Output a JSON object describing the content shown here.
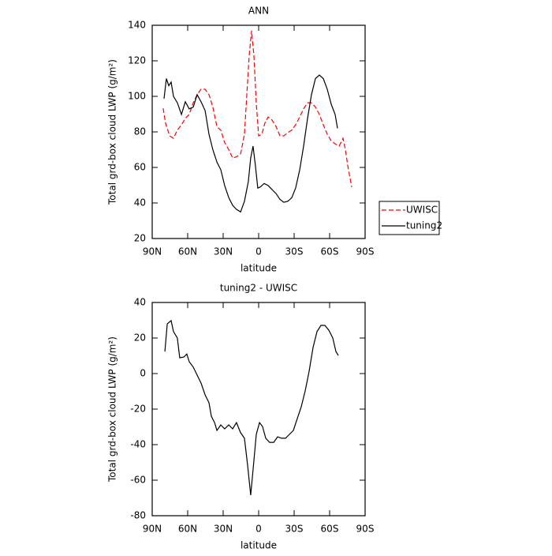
{
  "chart_data": [
    {
      "type": "line",
      "title": "ANN",
      "xlabel": "latitude",
      "ylabel": "Total grd-box cloud LWP (g/m²)",
      "xlim": [
        90,
        -90
      ],
      "xticks": [
        {
          "value": 90,
          "label": "90N"
        },
        {
          "value": 60,
          "label": "60N"
        },
        {
          "value": 30,
          "label": "30N"
        },
        0,
        {
          "value": -30,
          "label": "30S"
        },
        {
          "value": -60,
          "label": "60S"
        },
        {
          "value": -90,
          "label": "90S"
        }
      ],
      "ylim": [
        20,
        140
      ],
      "yticks": [
        20,
        40,
        60,
        80,
        100,
        120,
        140
      ],
      "legend": "outside-right",
      "series": [
        {
          "name": "UWISC",
          "color": "#ff0000",
          "style": "dashed",
          "x": [
            80.7,
            78.7,
            75.3,
            72,
            68.7,
            65.3,
            62,
            58.7,
            55.3,
            52,
            48.7,
            45.3,
            42,
            38.7,
            35.3,
            32,
            28.7,
            25.3,
            22,
            18.7,
            15.3,
            12,
            10,
            8,
            6,
            4,
            2,
            0,
            -2.7,
            -5.3,
            -8,
            -11.3,
            -14.7,
            -18,
            -21.3,
            -24.7,
            -28,
            -31.3,
            -34.7,
            -38,
            -41.3,
            -44.7,
            -48,
            -51.3,
            -54.7,
            -58,
            -61.3,
            -64.7,
            -68,
            -71.3,
            -73.3,
            -75.3,
            -78.7
          ],
          "values": [
            93.3,
            85,
            77.8,
            76.4,
            81,
            84,
            87.6,
            89.8,
            96.4,
            101,
            104,
            104,
            101,
            94,
            83,
            81,
            74,
            70,
            65.3,
            66,
            67.6,
            78.7,
            101,
            123,
            137,
            123,
            96,
            77.8,
            78.7,
            85,
            88.4,
            86.7,
            83,
            77.8,
            77.8,
            79.6,
            81,
            84,
            88.4,
            93,
            96.4,
            96.4,
            94,
            89.8,
            84,
            78.7,
            75,
            73.3,
            72,
            76.4,
            70,
            61,
            49
          ]
        },
        {
          "name": "tuning2",
          "color": "#000000",
          "style": "solid",
          "x": [
            80,
            78,
            76,
            74,
            72,
            68.7,
            65.3,
            62,
            58.7,
            55.3,
            52,
            48.7,
            45.3,
            42,
            38.7,
            35.3,
            32,
            28.7,
            25.3,
            22,
            18.7,
            15.3,
            12,
            8.7,
            6.7,
            4.7,
            2.7,
            0.7,
            -1.3,
            -4.7,
            -8,
            -11.3,
            -14.7,
            -18,
            -21.3,
            -24.7,
            -28,
            -31.3,
            -34.7,
            -38,
            -41.3,
            -44.7,
            -48,
            -51.3,
            -54.7,
            -58,
            -61.3,
            -64.7,
            -66.7
          ],
          "values": [
            98.7,
            110,
            106,
            108,
            100,
            96.4,
            89.8,
            97,
            93,
            94,
            101,
            97,
            92,
            78.7,
            70,
            63,
            58.7,
            49.8,
            43,
            38.7,
            36.4,
            35,
            41,
            52,
            65.3,
            72,
            61,
            48.4,
            49,
            51,
            49.8,
            47.6,
            45.3,
            42,
            40.4,
            41,
            43,
            48.4,
            58.7,
            72,
            87.6,
            101,
            110,
            112,
            110,
            104,
            95.6,
            89.8,
            82
          ]
        }
      ]
    },
    {
      "type": "line",
      "title": "tuning2 - UWISC",
      "xlabel": "latitude",
      "ylabel": "Total grd-box cloud LWP (g/m²)",
      "xlim": [
        90,
        -90
      ],
      "xticks": [
        {
          "value": 90,
          "label": "90N"
        },
        {
          "value": 60,
          "label": "60N"
        },
        {
          "value": 30,
          "label": "30N"
        },
        0,
        {
          "value": -30,
          "label": "30S"
        },
        {
          "value": -60,
          "label": "60S"
        },
        {
          "value": -90,
          "label": "90S"
        }
      ],
      "ylim": [
        -80,
        40
      ],
      "yticks": [
        -80,
        -60,
        -40,
        -20,
        0,
        20,
        40
      ],
      "series": [
        {
          "color": "#000000",
          "style": "solid",
          "x": [
            79.3,
            77.3,
            74,
            72,
            68.7,
            66.7,
            63.3,
            60.7,
            58.7,
            55.3,
            52,
            48.7,
            45.3,
            42,
            40,
            37.3,
            35.3,
            32,
            28.7,
            25.3,
            22,
            18.7,
            15.3,
            12,
            9.3,
            6.7,
            4.7,
            2,
            -0.7,
            -3.3,
            -6,
            -9.3,
            -12.7,
            -16,
            -19.3,
            -22.7,
            -26,
            -29.3,
            -32.7,
            -36,
            -39.3,
            -42.7,
            -46,
            -49.3,
            -52.7,
            -56,
            -59.3,
            -62.7,
            -65.3,
            -67.3
          ],
          "values": [
            12.4,
            28,
            29.8,
            23.6,
            20,
            8.9,
            9.3,
            11,
            6.7,
            3.6,
            -0.9,
            -5.3,
            -12,
            -16.4,
            -24,
            -27.6,
            -32,
            -28.9,
            -31.1,
            -28.9,
            -31.1,
            -27.6,
            -33.3,
            -36.4,
            -52,
            -68.4,
            -54.2,
            -34.2,
            -27.6,
            -29.8,
            -36.4,
            -38.7,
            -38.7,
            -35.6,
            -36.4,
            -36.4,
            -34.2,
            -32,
            -25.3,
            -18.7,
            -9.8,
            1.3,
            14.7,
            23.6,
            27.1,
            27.1,
            24.4,
            20,
            12.4,
            10.2
          ]
        }
      ]
    }
  ]
}
